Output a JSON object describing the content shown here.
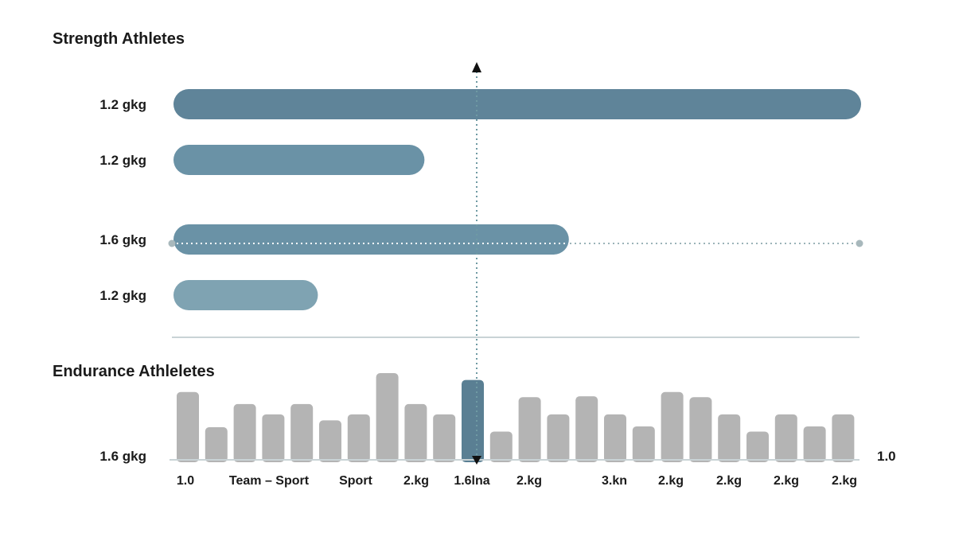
{
  "chart_data": [
    {
      "type": "bar",
      "orientation": "horizontal",
      "title": "Strength Athletes",
      "categories": [
        "1.2 gkg",
        "1.2 gkg",
        "1.6 gkg",
        "1.2 gkg"
      ],
      "values": [
        100,
        36.5,
        57.5,
        21
      ],
      "xlim": [
        0,
        100
      ],
      "colors": [
        "#5f8499",
        "#6a92a6",
        "#6a92a6",
        "#7fa3b2"
      ],
      "guides": {
        "vertical": true,
        "horizontal_at": "1.6 gkg"
      }
    },
    {
      "type": "bar",
      "title": "Endurance Athleletes",
      "y_label_left": "1.6 gkg",
      "y_label_right": "1.0",
      "tick_labels": [
        "1.0",
        "Team – Sport",
        "Sport",
        "2.kg",
        "1.6lna",
        "2.kg",
        "3.kn",
        "2.kg",
        "2.kg",
        "2.kg",
        "2.kg"
      ],
      "values": [
        78,
        37,
        64,
        52,
        64,
        45,
        52,
        100,
        64,
        52,
        92,
        32,
        72,
        52,
        73,
        52,
        38,
        78,
        72,
        52,
        32,
        52,
        38,
        52
      ],
      "highlight_index": 10,
      "ylim": [
        0,
        100
      ],
      "bar_color": "#b4b4b4",
      "highlight_color": "#5a7f93"
    }
  ]
}
